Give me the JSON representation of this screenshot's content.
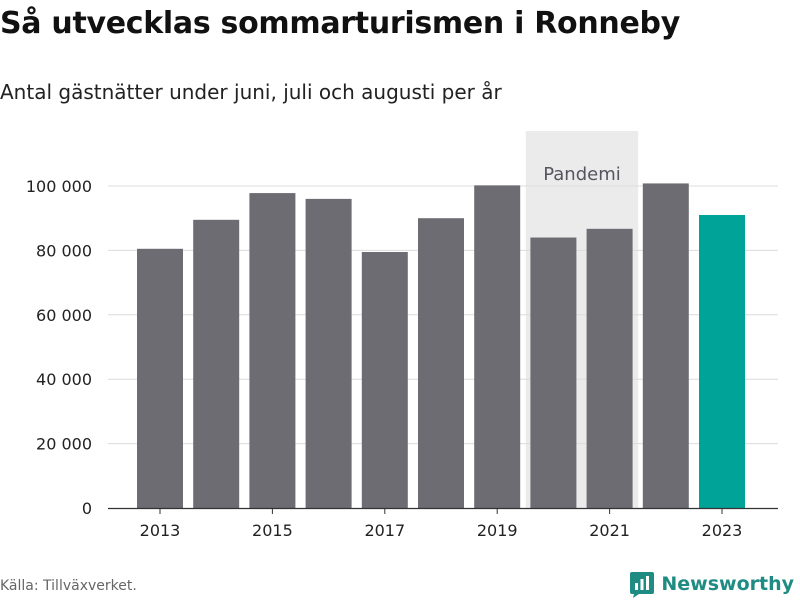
{
  "title": "Så utvecklas sommarturismen i Ronneby",
  "subtitle": "Antal gästnätter under juni, juli och augusti per år",
  "source": "Källa: Tillväxverket.",
  "brand": {
    "name": "Newsworthy",
    "logo_icon": "newsworthy-logo-icon"
  },
  "colors": {
    "bar": "#6d6c73",
    "highlight": "#00a398",
    "band": "#ebebeb",
    "grid": "#dcdcdc",
    "axis": "#333333",
    "text": "#222222",
    "brand": "#1f8c84"
  },
  "chart_data": {
    "type": "bar",
    "categories": [
      "2013",
      "2014",
      "2015",
      "2016",
      "2017",
      "2018",
      "2019",
      "2020",
      "2021",
      "2022",
      "2023"
    ],
    "values": [
      80500,
      89500,
      97800,
      96000,
      79500,
      90000,
      100200,
      84000,
      86700,
      100800,
      91000
    ],
    "highlight_category": "2023",
    "ylim": [
      0,
      100000
    ],
    "yticks": [
      0,
      20000,
      40000,
      60000,
      80000,
      100000
    ],
    "ytick_labels": [
      "0",
      "20 000",
      "40 000",
      "60 000",
      "80 000",
      "100 000"
    ],
    "xtick_labels": [
      "2013",
      "2015",
      "2017",
      "2019",
      "2021",
      "2023"
    ],
    "grid": true,
    "annotation": {
      "label": "Pandemi",
      "span": [
        "2020",
        "2021"
      ]
    },
    "title": "Så utvecklas sommarturismen i Ronneby",
    "subtitle": "Antal gästnätter under juni, juli och augusti per år",
    "xlabel": "",
    "ylabel": ""
  }
}
